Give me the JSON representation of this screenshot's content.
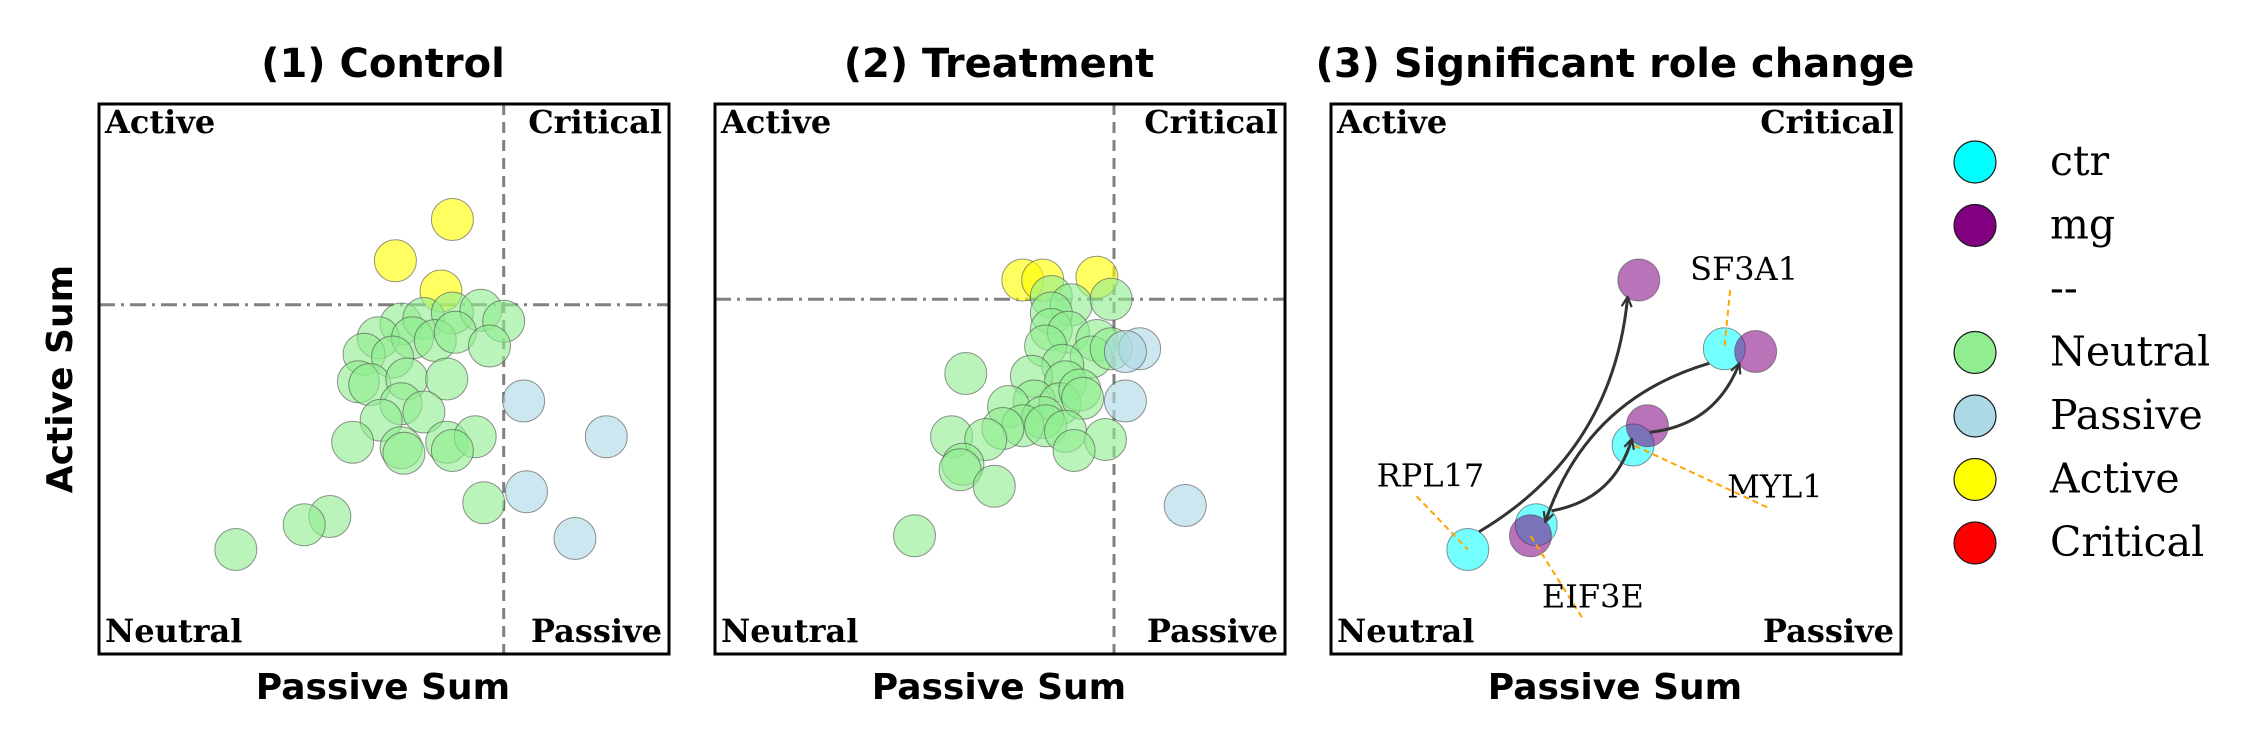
{
  "figure": {
    "ylabel": "Active Sum",
    "xlabel": "Passive Sum",
    "quadrant_labels": {
      "top_left": "Active",
      "top_right": "Critical",
      "bottom_left": "Neutral",
      "bottom_right": "Passive"
    }
  },
  "colors": {
    "Neutral": "#90EE90",
    "Passive": "#ADD8E6",
    "Active": "#FFFF00",
    "Critical": "#FF0000",
    "ctr": "#00FFFF",
    "mg": "#800080",
    "annotation": "#FFA500",
    "threshold": "#808080",
    "arrow": "#333333"
  },
  "legend": {
    "entries": [
      {
        "label": "ctr",
        "color": "#00FFFF"
      },
      {
        "label": "mg",
        "color": "#800080"
      },
      {
        "label": "--",
        "color": null
      },
      {
        "label": "Neutral",
        "color": "#90EE90"
      },
      {
        "label": "Passive",
        "color": "#ADD8E6"
      },
      {
        "label": "Active",
        "color": "#FFFF00"
      },
      {
        "label": "Critical",
        "color": "#FF0000"
      }
    ]
  },
  "chart_data": [
    {
      "type": "scatter",
      "title": "(1) Control",
      "xlabel": "",
      "ylabel": "Active Sum",
      "xlim": [
        0,
        1
      ],
      "ylim": [
        0,
        1
      ],
      "x_threshold": 0.71,
      "y_threshold": 0.635,
      "x_threshold_style": "dashed",
      "y_threshold_style": "dashdot",
      "points": [
        {
          "x": 0.62,
          "y": 0.79,
          "role": "Active"
        },
        {
          "x": 0.52,
          "y": 0.715,
          "role": "Active"
        },
        {
          "x": 0.6,
          "y": 0.66,
          "role": "Active"
        },
        {
          "x": 0.53,
          "y": 0.6,
          "role": "Neutral"
        },
        {
          "x": 0.57,
          "y": 0.61,
          "role": "Neutral"
        },
        {
          "x": 0.62,
          "y": 0.62,
          "role": "Neutral"
        },
        {
          "x": 0.67,
          "y": 0.625,
          "role": "Neutral"
        },
        {
          "x": 0.71,
          "y": 0.605,
          "role": "Neutral"
        },
        {
          "x": 0.49,
          "y": 0.575,
          "role": "Neutral"
        },
        {
          "x": 0.55,
          "y": 0.575,
          "role": "Neutral"
        },
        {
          "x": 0.59,
          "y": 0.57,
          "role": "Neutral"
        },
        {
          "x": 0.625,
          "y": 0.585,
          "role": "Neutral"
        },
        {
          "x": 0.685,
          "y": 0.56,
          "role": "Neutral"
        },
        {
          "x": 0.465,
          "y": 0.545,
          "role": "Neutral"
        },
        {
          "x": 0.515,
          "y": 0.54,
          "role": "Neutral"
        },
        {
          "x": 0.455,
          "y": 0.495,
          "role": "Neutral"
        },
        {
          "x": 0.475,
          "y": 0.49,
          "role": "Neutral"
        },
        {
          "x": 0.54,
          "y": 0.5,
          "role": "Neutral"
        },
        {
          "x": 0.61,
          "y": 0.5,
          "role": "Neutral"
        },
        {
          "x": 0.53,
          "y": 0.455,
          "role": "Neutral"
        },
        {
          "x": 0.57,
          "y": 0.44,
          "role": "Neutral"
        },
        {
          "x": 0.495,
          "y": 0.425,
          "role": "Neutral"
        },
        {
          "x": 0.445,
          "y": 0.385,
          "role": "Neutral"
        },
        {
          "x": 0.53,
          "y": 0.375,
          "role": "Neutral"
        },
        {
          "x": 0.61,
          "y": 0.385,
          "role": "Neutral"
        },
        {
          "x": 0.66,
          "y": 0.395,
          "role": "Neutral"
        },
        {
          "x": 0.535,
          "y": 0.365,
          "role": "Neutral"
        },
        {
          "x": 0.62,
          "y": 0.37,
          "role": "Neutral"
        },
        {
          "x": 0.405,
          "y": 0.25,
          "role": "Neutral"
        },
        {
          "x": 0.36,
          "y": 0.235,
          "role": "Neutral"
        },
        {
          "x": 0.24,
          "y": 0.19,
          "role": "Neutral"
        },
        {
          "x": 0.675,
          "y": 0.275,
          "role": "Neutral"
        },
        {
          "x": 0.745,
          "y": 0.46,
          "role": "Passive"
        },
        {
          "x": 0.89,
          "y": 0.395,
          "role": "Passive"
        },
        {
          "x": 0.75,
          "y": 0.295,
          "role": "Passive"
        },
        {
          "x": 0.835,
          "y": 0.21,
          "role": "Passive"
        }
      ]
    },
    {
      "type": "scatter",
      "title": "(2) Treatment",
      "xlabel": "Passive Sum",
      "ylabel": "",
      "xlim": [
        0,
        1
      ],
      "ylim": [
        0,
        1
      ],
      "x_threshold": 0.7,
      "y_threshold": 0.645,
      "x_threshold_style": "dashed",
      "y_threshold_style": "dashdot",
      "points": [
        {
          "x": 0.54,
          "y": 0.68,
          "role": "Active"
        },
        {
          "x": 0.575,
          "y": 0.68,
          "role": "Active"
        },
        {
          "x": 0.67,
          "y": 0.685,
          "role": "Active"
        },
        {
          "x": 0.59,
          "y": 0.65,
          "role": "Neutral"
        },
        {
          "x": 0.625,
          "y": 0.635,
          "role": "Neutral"
        },
        {
          "x": 0.59,
          "y": 0.62,
          "role": "Neutral"
        },
        {
          "x": 0.695,
          "y": 0.645,
          "role": "Neutral"
        },
        {
          "x": 0.59,
          "y": 0.59,
          "role": "Neutral"
        },
        {
          "x": 0.62,
          "y": 0.585,
          "role": "Neutral"
        },
        {
          "x": 0.58,
          "y": 0.56,
          "role": "Neutral"
        },
        {
          "x": 0.67,
          "y": 0.57,
          "role": "Neutral"
        },
        {
          "x": 0.66,
          "y": 0.54,
          "role": "Neutral"
        },
        {
          "x": 0.61,
          "y": 0.525,
          "role": "Neutral"
        },
        {
          "x": 0.44,
          "y": 0.51,
          "role": "Neutral"
        },
        {
          "x": 0.555,
          "y": 0.505,
          "role": "Neutral"
        },
        {
          "x": 0.615,
          "y": 0.495,
          "role": "Neutral"
        },
        {
          "x": 0.56,
          "y": 0.46,
          "role": "Neutral"
        },
        {
          "x": 0.605,
          "y": 0.455,
          "role": "Neutral"
        },
        {
          "x": 0.64,
          "y": 0.48,
          "role": "Neutral"
        },
        {
          "x": 0.515,
          "y": 0.45,
          "role": "Neutral"
        },
        {
          "x": 0.645,
          "y": 0.465,
          "role": "Neutral"
        },
        {
          "x": 0.575,
          "y": 0.43,
          "role": "Neutral"
        },
        {
          "x": 0.54,
          "y": 0.415,
          "role": "Neutral"
        },
        {
          "x": 0.58,
          "y": 0.415,
          "role": "Neutral"
        },
        {
          "x": 0.505,
          "y": 0.41,
          "role": "Neutral"
        },
        {
          "x": 0.615,
          "y": 0.405,
          "role": "Neutral"
        },
        {
          "x": 0.415,
          "y": 0.395,
          "role": "Neutral"
        },
        {
          "x": 0.685,
          "y": 0.39,
          "role": "Neutral"
        },
        {
          "x": 0.475,
          "y": 0.39,
          "role": "Neutral"
        },
        {
          "x": 0.63,
          "y": 0.37,
          "role": "Neutral"
        },
        {
          "x": 0.435,
          "y": 0.345,
          "role": "Neutral"
        },
        {
          "x": 0.43,
          "y": 0.335,
          "role": "Neutral"
        },
        {
          "x": 0.49,
          "y": 0.305,
          "role": "Neutral"
        },
        {
          "x": 0.35,
          "y": 0.215,
          "role": "Neutral"
        },
        {
          "x": 0.695,
          "y": 0.555,
          "role": "Neutral"
        },
        {
          "x": 0.745,
          "y": 0.555,
          "role": "Passive"
        },
        {
          "x": 0.72,
          "y": 0.55,
          "role": "Passive"
        },
        {
          "x": 0.72,
          "y": 0.46,
          "role": "Passive"
        },
        {
          "x": 0.825,
          "y": 0.27,
          "role": "Passive"
        }
      ]
    },
    {
      "type": "scatter",
      "title": "(3) Significant role change",
      "xlabel": "Passive Sum",
      "ylabel": "",
      "xlim": [
        0,
        1
      ],
      "ylim": [
        0,
        1
      ],
      "series": [
        {
          "name": "ctr",
          "color": "#00FFFF"
        },
        {
          "name": "mg",
          "color": "#800080"
        }
      ],
      "genes": [
        {
          "name": "RPL17",
          "ctr": {
            "x": 0.24,
            "y": 0.19
          },
          "mg": {
            "x": 0.54,
            "y": 0.68
          }
        },
        {
          "name": "EIF3E",
          "ctr": {
            "x": 0.36,
            "y": 0.235
          },
          "mg": {
            "x": 0.35,
            "y": 0.215
          }
        },
        {
          "name": "MYL1",
          "ctr": {
            "x": 0.53,
            "y": 0.38
          },
          "mg": {
            "x": 0.555,
            "y": 0.415
          }
        },
        {
          "name": "SF3A1",
          "ctr": {
            "x": 0.69,
            "y": 0.555
          },
          "mg": {
            "x": 0.745,
            "y": 0.55
          }
        }
      ],
      "arrows": [
        {
          "from": "RPL17.ctr",
          "to": "RPL17.mg"
        },
        {
          "from": "EIF3E.ctr",
          "to": "MYL1.mg"
        },
        {
          "from": "SF3A1.ctr",
          "to": "EIF3E.mg"
        },
        {
          "from": "MYL1.ctr",
          "to": "SF3A1.mg"
        }
      ],
      "gene_labels": [
        {
          "text": "SF3A1",
          "target": "SF3A1.ctr",
          "pos": [
            0.63,
            0.68
          ]
        },
        {
          "text": "RPL17",
          "target": "RPL17.ctr",
          "pos": [
            0.08,
            0.305
          ]
        },
        {
          "text": "MYL1",
          "target": "MYL1.ctr",
          "pos": [
            0.695,
            0.285
          ]
        },
        {
          "text": "EIF3E",
          "target": "EIF3E.mg",
          "pos": [
            0.37,
            0.085
          ]
        }
      ]
    }
  ]
}
